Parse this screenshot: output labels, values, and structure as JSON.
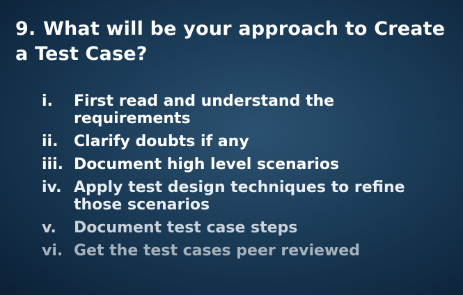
{
  "slide": {
    "title_number": "9.",
    "title_text": "What will be your approach to Create a Test Case?",
    "items": [
      {
        "marker": "i.",
        "text": "First read and understand the requirements"
      },
      {
        "marker": "ii.",
        "text": "Clarify doubts if any"
      },
      {
        "marker": "iii.",
        "text": "Document high level scenarios"
      },
      {
        "marker": "iv.",
        "text": "Apply test design techniques to refine those scenarios"
      },
      {
        "marker": "v.",
        "text": "Document test case steps"
      },
      {
        "marker": "vi.",
        "text": "Get the test cases peer reviewed"
      }
    ],
    "colors": {
      "background": "#1b3c58",
      "title": "#ffffff"
    }
  }
}
